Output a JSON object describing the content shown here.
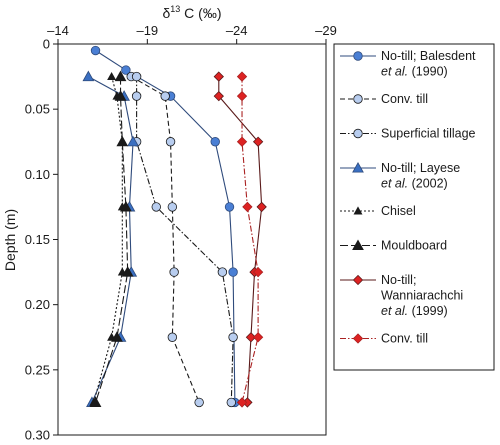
{
  "chart_data": {
    "type": "line",
    "xlabel": {
      "main": "δ",
      "sup": "13",
      "rest": " C (‰)"
    },
    "ylabel": "Depth (m)",
    "x_ticks": [
      -14,
      -19,
      -24,
      -29
    ],
    "x_tick_labels": [
      "–14",
      "–19",
      "–24",
      "–29"
    ],
    "y_ticks": [
      0,
      0.05,
      0.1,
      0.15,
      0.2,
      0.25,
      0.3
    ],
    "y_tick_labels": [
      "0",
      "0.05",
      "0.10",
      "0.15",
      "0.20",
      "0.25",
      "0.30"
    ],
    "xlim": [
      -14,
      -29
    ],
    "ylim": [
      0,
      0.3
    ],
    "x_axis_position": "top",
    "y_inverted": true,
    "grid": false,
    "legend_position": "right",
    "series": [
      {
        "name": "No-till; Balesdent et al. (1990)",
        "legend_lines": [
          [
            {
              "t": "No-till; Balesdent"
            }
          ],
          [
            {
              "t": "et al.",
              "i": true
            },
            {
              "t": " (1990)"
            }
          ]
        ],
        "color": "#2f4b7c",
        "fill": "#4a7fd4",
        "marker": "circle",
        "line": "solid",
        "x": [
          -16.1,
          -17.8,
          -20.3,
          -22.8,
          -23.6,
          -23.8,
          -23.9
        ],
        "y": [
          0.005,
          0.02,
          0.04,
          0.075,
          0.125,
          0.175,
          0.275
        ]
      },
      {
        "name": "Conv. till",
        "legend_lines": [
          [
            {
              "t": "Conv. till"
            }
          ]
        ],
        "color": "#1a1a1a",
        "fill": "#b8cdef",
        "marker": "circle",
        "line": "dashed",
        "x": [
          -18.1,
          -20.0,
          -20.3,
          -20.4,
          -20.5,
          -20.4,
          -21.9
        ],
        "y": [
          0.025,
          0.04,
          0.075,
          0.125,
          0.175,
          0.225,
          0.275
        ]
      },
      {
        "name": "Superficial tillage",
        "legend_lines": [
          [
            {
              "t": "Superficial tillage"
            }
          ]
        ],
        "color": "#1a1a1a",
        "fill": "#b8cdef",
        "marker": "circle",
        "line": "dashdot",
        "x": [
          -18.4,
          -18.4,
          -18.4,
          -19.5,
          -23.2,
          -23.8,
          -23.7
        ],
        "y": [
          0.025,
          0.04,
          0.075,
          0.125,
          0.175,
          0.225,
          0.275
        ]
      },
      {
        "name": "No-till; Layese et al. (2002)",
        "legend_lines": [
          [
            {
              "t": "No-till; Layese"
            }
          ],
          [
            {
              "t": "et al.",
              "i": true
            },
            {
              "t": " (2002)"
            }
          ]
        ],
        "color": "#2f4b7c",
        "fill": "#3a6fc1",
        "marker": "triangle",
        "line": "solid",
        "x": [
          -15.7,
          -17.7,
          -18.2,
          -18.0,
          -18.1,
          -17.5,
          -15.9
        ],
        "y": [
          0.025,
          0.04,
          0.075,
          0.125,
          0.175,
          0.225,
          0.275
        ]
      },
      {
        "name": "Chisel",
        "legend_lines": [
          [
            {
              "t": "Chisel"
            }
          ]
        ],
        "color": "#1a1a1a",
        "fill": "#1a1a1a",
        "marker": "triangle-small",
        "line": "dotted",
        "x": [
          -17.0,
          -17.3,
          -17.6,
          -17.6,
          -17.6,
          -17.0,
          -16.0
        ],
        "y": [
          0.025,
          0.04,
          0.075,
          0.125,
          0.175,
          0.225,
          0.275
        ]
      },
      {
        "name": "Mouldboard",
        "legend_lines": [
          [
            {
              "t": "Mouldboard"
            }
          ]
        ],
        "color": "#1a1a1a",
        "fill": "#1a1a1a",
        "marker": "triangle",
        "line": "longdash",
        "x": [
          -17.5,
          -17.5,
          -17.6,
          -17.8,
          -17.9,
          -17.3,
          -16.1
        ],
        "y": [
          0.025,
          0.04,
          0.075,
          0.125,
          0.175,
          0.225,
          0.275
        ]
      },
      {
        "name": "No-till; Wanniarachchi et al. (1999)",
        "legend_lines": [
          [
            {
              "t": "No-till;"
            }
          ],
          [
            {
              "t": "Wanniarachchi"
            }
          ],
          [
            {
              "t": "et al.",
              "i": true
            },
            {
              "t": " (1999)"
            }
          ]
        ],
        "color": "#5a1a1a",
        "fill": "#dd2222",
        "marker": "diamond",
        "line": "solid",
        "x": [
          -23.0,
          -23.0,
          -25.2,
          -25.4,
          -25.0,
          -24.8,
          -24.6
        ],
        "y": [
          0.025,
          0.04,
          0.075,
          0.125,
          0.175,
          0.225,
          0.275
        ]
      },
      {
        "name": "Conv. till",
        "legend_lines": [
          [
            {
              "t": "Conv. till"
            }
          ]
        ],
        "color": "#aa2222",
        "fill": "#dd2222",
        "marker": "diamond",
        "line": "dashdot",
        "x": [
          -24.3,
          -24.3,
          -24.3,
          -24.6,
          -25.2,
          -25.2,
          -24.3
        ],
        "y": [
          0.025,
          0.04,
          0.075,
          0.125,
          0.175,
          0.225,
          0.275
        ]
      }
    ]
  }
}
